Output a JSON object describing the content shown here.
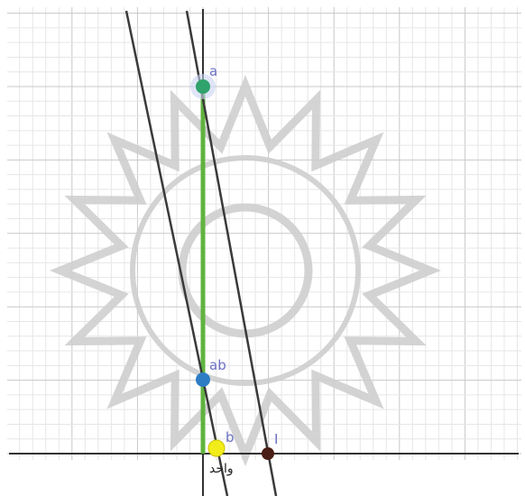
{
  "points": [
    {
      "label": "a"
    },
    {
      "label": "ab"
    },
    {
      "label": "b"
    },
    {
      "label": "I"
    }
  ],
  "origin_label": "واحد"
}
